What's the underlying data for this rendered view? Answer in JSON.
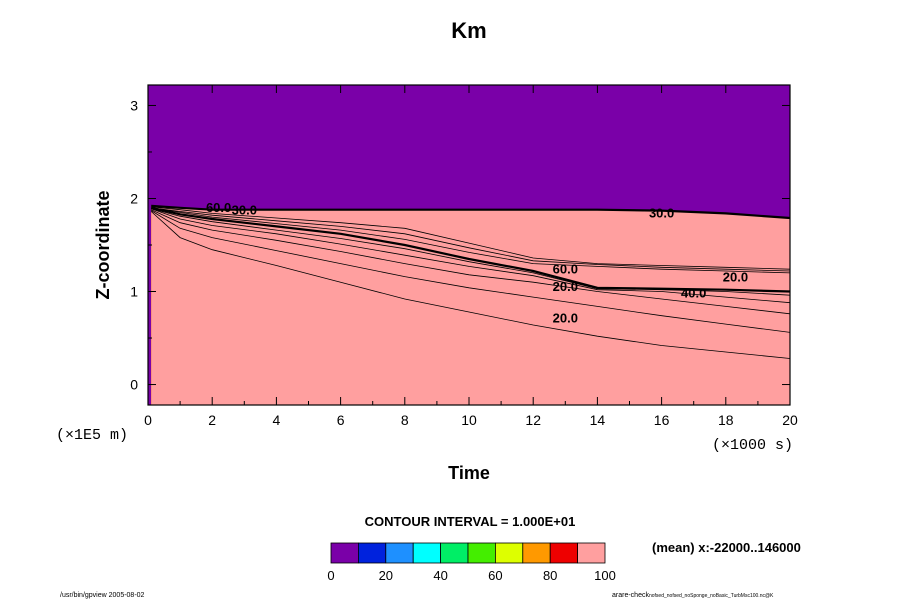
{
  "chart_data": {
    "type": "contour",
    "title": "Km",
    "xlabel": "Time",
    "ylabel": "Z-coordinate",
    "x_scale_label": "(×1000 s)",
    "y_scale_label": "(×1E5 m)",
    "xlim": [
      0,
      20
    ],
    "ylim": [
      -0.22,
      3.22
    ],
    "x_ticks": [
      "0",
      "2",
      "4",
      "6",
      "8",
      "10",
      "12",
      "14",
      "16",
      "18",
      "20"
    ],
    "y_ticks": [
      "0",
      "1",
      "2",
      "3"
    ],
    "contour_interval_text": "CONTOUR INTERVAL = 1.000E+01",
    "mean_text": "(mean) x:-22000..146000",
    "colorbar": {
      "levels": [
        0,
        10,
        20,
        30,
        40,
        50,
        60,
        70,
        80,
        90,
        100
      ],
      "tick_labels": [
        "0",
        "20",
        "40",
        "60",
        "80",
        "100"
      ],
      "colors": [
        "#7a00a8",
        "#0022dd",
        "#1e90ff",
        "#00ffff",
        "#00ee66",
        "#44ee00",
        "#ddff00",
        "#ff9900",
        "#ee0000",
        "#ff9f9f"
      ]
    },
    "contour_labels": [
      {
        "text": "20.0",
        "x": 13.0,
        "y": 0.72
      },
      {
        "text": "20.0",
        "x": 13.0,
        "y": 1.06
      },
      {
        "text": "40.0",
        "x": 17.0,
        "y": 0.99
      },
      {
        "text": "60.0",
        "x": 13.0,
        "y": 1.25
      },
      {
        "text": "20.0",
        "x": 18.3,
        "y": 1.16
      },
      {
        "text": "30.0",
        "x": 16.0,
        "y": 1.85
      },
      {
        "text": "60.0",
        "x": 2.2,
        "y": 1.91
      },
      {
        "text": "30.0",
        "x": 3.0,
        "y": 1.88
      }
    ],
    "bands": [
      {
        "level": 0,
        "top": [
          [
            0.1,
            1.86
          ],
          [
            1,
            1.58
          ],
          [
            2,
            1.45
          ],
          [
            4,
            1.28
          ],
          [
            6,
            1.1
          ],
          [
            8,
            0.92
          ],
          [
            10,
            0.78
          ],
          [
            12,
            0.64
          ],
          [
            14,
            0.52
          ],
          [
            16,
            0.42
          ],
          [
            18,
            0.35
          ],
          [
            20,
            0.28
          ]
        ]
      },
      {
        "level": 1,
        "top": [
          [
            0.1,
            1.87
          ],
          [
            1,
            1.68
          ],
          [
            2,
            1.58
          ],
          [
            4,
            1.44
          ],
          [
            6,
            1.3
          ],
          [
            8,
            1.16
          ],
          [
            10,
            1.04
          ],
          [
            12,
            0.94
          ],
          [
            14,
            0.84
          ],
          [
            16,
            0.74
          ],
          [
            18,
            0.65
          ],
          [
            20,
            0.56
          ]
        ]
      },
      {
        "level": 2,
        "top": [
          [
            0.1,
            1.88
          ],
          [
            1,
            1.74
          ],
          [
            2,
            1.66
          ],
          [
            4,
            1.55
          ],
          [
            6,
            1.43
          ],
          [
            8,
            1.3
          ],
          [
            10,
            1.18
          ],
          [
            12,
            1.1
          ],
          [
            14,
            1.0
          ],
          [
            16,
            0.92
          ],
          [
            18,
            0.84
          ],
          [
            20,
            0.76
          ]
        ]
      },
      {
        "level": 3,
        "top": [
          [
            0.1,
            1.89
          ],
          [
            1,
            1.78
          ],
          [
            2,
            1.71
          ],
          [
            4,
            1.62
          ],
          [
            6,
            1.51
          ],
          [
            8,
            1.39
          ],
          [
            10,
            1.27
          ],
          [
            12,
            1.17
          ],
          [
            14,
            1.02
          ],
          [
            16,
            1.0
          ],
          [
            18,
            0.94
          ],
          [
            20,
            0.88
          ]
        ]
      },
      {
        "level": 4,
        "top": [
          [
            0.1,
            1.89
          ],
          [
            1,
            1.81
          ],
          [
            2,
            1.75
          ],
          [
            4,
            1.66
          ],
          [
            6,
            1.57
          ],
          [
            8,
            1.46
          ],
          [
            10,
            1.32
          ],
          [
            12,
            1.2
          ],
          [
            14,
            1.03
          ],
          [
            16,
            1.02
          ],
          [
            18,
            1.0
          ],
          [
            20,
            0.96
          ]
        ]
      },
      {
        "level": 5,
        "top": [
          [
            0.1,
            1.9
          ],
          [
            1,
            1.83
          ],
          [
            2,
            1.78
          ],
          [
            4,
            1.7
          ],
          [
            6,
            1.62
          ],
          [
            8,
            1.5
          ],
          [
            10,
            1.35
          ],
          [
            12,
            1.22
          ],
          [
            14,
            1.04
          ],
          [
            16,
            1.03
          ],
          [
            18,
            1.02
          ],
          [
            20,
            1.0
          ]
        ]
      },
      {
        "level": 6,
        "top": [
          [
            0.1,
            1.9
          ],
          [
            1,
            1.85
          ],
          [
            2,
            1.8
          ],
          [
            4,
            1.73
          ],
          [
            6,
            1.66
          ],
          [
            8,
            1.56
          ],
          [
            10,
            1.42
          ],
          [
            12,
            1.3
          ],
          [
            14,
            1.27
          ],
          [
            16,
            1.24
          ],
          [
            18,
            1.22
          ],
          [
            20,
            1.2
          ]
        ]
      },
      {
        "level": 7,
        "top": [
          [
            0.1,
            1.9
          ],
          [
            1,
            1.86
          ],
          [
            2,
            1.82
          ],
          [
            4,
            1.76
          ],
          [
            6,
            1.7
          ],
          [
            8,
            1.62
          ],
          [
            10,
            1.47
          ],
          [
            12,
            1.33
          ],
          [
            14,
            1.29
          ],
          [
            16,
            1.26
          ],
          [
            18,
            1.24
          ],
          [
            20,
            1.22
          ]
        ]
      },
      {
        "level": 8,
        "top": [
          [
            0.1,
            1.91
          ],
          [
            1,
            1.88
          ],
          [
            2,
            1.84
          ],
          [
            4,
            1.79
          ],
          [
            6,
            1.74
          ],
          [
            8,
            1.68
          ],
          [
            10,
            1.52
          ],
          [
            12,
            1.36
          ],
          [
            14,
            1.3
          ],
          [
            16,
            1.28
          ],
          [
            18,
            1.26
          ],
          [
            20,
            1.24
          ]
        ]
      },
      {
        "level": 9,
        "top": [
          [
            0.1,
            1.92
          ],
          [
            1,
            1.9
          ],
          [
            2,
            1.88
          ],
          [
            4,
            1.88
          ],
          [
            8,
            1.88
          ],
          [
            12,
            1.88
          ],
          [
            14,
            1.88
          ],
          [
            16,
            1.87
          ],
          [
            18,
            1.84
          ],
          [
            20,
            1.79
          ]
        ]
      }
    ]
  },
  "footer": {
    "left": "/usr/bin/gpview 2005-08-02",
    "right_main": "arare-check",
    "right_sub": "nofsed_nofsed_noSponge_noBasic_TurbMsc100.nc@K"
  }
}
